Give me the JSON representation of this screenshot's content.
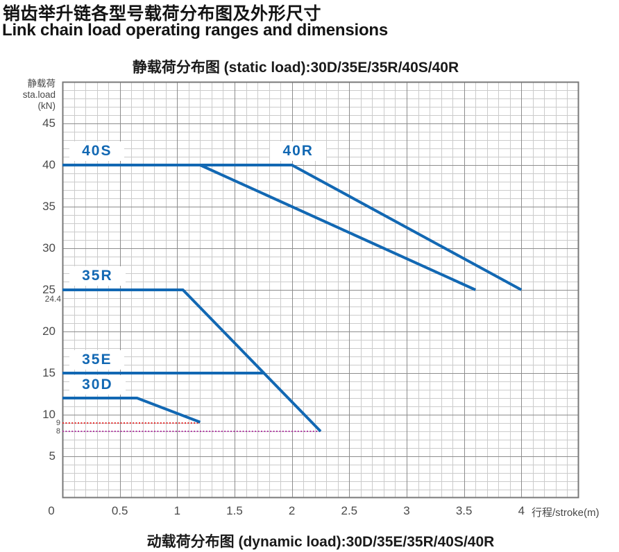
{
  "page": {
    "title_zh": "销齿举升链各型号载荷分布图及外形尺寸",
    "title_en": "Link chain load operating ranges and dimensions",
    "bottom_caption": "动载荷分布图 (dynamic load):30D/35E/35R/40S/40R"
  },
  "chart_data": {
    "type": "line",
    "title": "静载荷分布图 (static load):30D/35E/35R/40S/40R",
    "xlabel": "行程/stroke(m)",
    "ylabel_lines": [
      "静载荷",
      "sta.load",
      "(kN)"
    ],
    "xlim": [
      0,
      4.5
    ],
    "ylim": [
      0,
      50
    ],
    "x_ticks": [
      0,
      0.5,
      1,
      1.5,
      2,
      2.5,
      3,
      3.5,
      4
    ],
    "y_ticks": [
      5,
      10,
      15,
      20,
      25,
      30,
      35,
      40,
      45
    ],
    "x_minor_step": 0.1,
    "y_minor_step": 1,
    "x_major_step": 0.5,
    "y_major_step": 5,
    "grid": true,
    "legend_position": "inline-labels",
    "extra_y_labels": [
      {
        "label": "24.4",
        "y_center_kn": 23.9,
        "size": "small"
      },
      {
        "label": "9",
        "y_center_kn": 9.0,
        "size": "tiny"
      },
      {
        "label": "8",
        "y_center_kn": 8.0,
        "size": "tiny"
      }
    ],
    "series": [
      {
        "name": "40R",
        "points": [
          [
            0,
            40
          ],
          [
            2.0,
            40
          ],
          [
            4.0,
            25
          ]
        ],
        "label_pos": [
          1.92,
          40.5
        ]
      },
      {
        "name": "40S",
        "points": [
          [
            0,
            40
          ],
          [
            1.2,
            40
          ],
          [
            3.6,
            25
          ]
        ],
        "label_pos": [
          0.17,
          40.5
        ]
      },
      {
        "name": "35R",
        "points": [
          [
            0,
            25
          ],
          [
            1.05,
            25
          ],
          [
            2.25,
            8
          ]
        ],
        "label_pos": [
          0.17,
          25.5
        ]
      },
      {
        "name": "35E",
        "points": [
          [
            0,
            15
          ],
          [
            1.75,
            15
          ]
        ],
        "label_pos": [
          0.17,
          15.45
        ]
      },
      {
        "name": "30D",
        "points": [
          [
            0,
            12
          ],
          [
            0.65,
            12
          ],
          [
            1.2,
            9.1
          ]
        ],
        "label_pos": [
          0.17,
          12.45
        ]
      }
    ],
    "reference_lines": [
      {
        "value_kn": 9,
        "x_start": 0,
        "x_end": 1.19,
        "color": "#e32a2a",
        "style": "dotted"
      },
      {
        "value_kn": 8,
        "x_start": 0,
        "x_end": 2.25,
        "color": "#b03aa2",
        "style": "dotted"
      }
    ],
    "colors": {
      "series": "#1268b3",
      "grid_minor": "#cbcbcb",
      "grid_major": "#8c8c8c",
      "frame": "#787878",
      "tick_text": "#4a4a4a",
      "title_text": "#1a1a1a"
    }
  }
}
